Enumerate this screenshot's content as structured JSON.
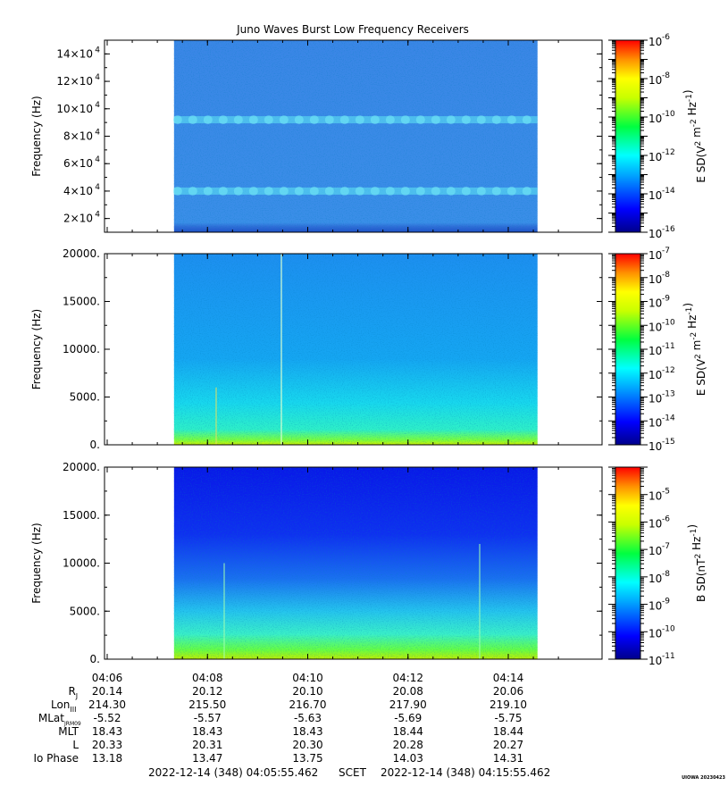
{
  "title": "Juno Waves Burst Low Frequency Receivers",
  "chart_data": [
    {
      "type": "heatmap",
      "name": "E-field high band",
      "ylabel": "Frequency (Hz)",
      "yticks": [
        {
          "value": 20000,
          "label": "2×10",
          "exp": "4"
        },
        {
          "value": 40000,
          "label": "4×10",
          "exp": "4"
        },
        {
          "value": 60000,
          "label": "6×10",
          "exp": "4"
        },
        {
          "value": 80000,
          "label": "8×10",
          "exp": "4"
        },
        {
          "value": 100000,
          "label": "10×10",
          "exp": "4"
        },
        {
          "value": 120000,
          "label": "12×10",
          "exp": "4"
        },
        {
          "value": 140000,
          "label": "14×10",
          "exp": "4"
        }
      ],
      "ylim": [
        10000,
        150000
      ],
      "colorbar": {
        "label": "E SD(V",
        "label_tail": " m",
        "label_end": " Hz",
        "exps": [
          "2",
          "-2",
          "-1"
        ],
        "log_range": [
          -16,
          -6
        ],
        "ticks": [
          {
            "exp": "-6"
          },
          {
            "exp": "-8"
          },
          {
            "exp": "-10"
          },
          {
            "exp": "-12"
          },
          {
            "exp": "-14"
          },
          {
            "exp": "-16"
          }
        ]
      },
      "features": [
        {
          "freq_hz": 40000,
          "desc": "band"
        },
        {
          "freq_hz": 92000,
          "desc": "band"
        }
      ]
    },
    {
      "type": "heatmap",
      "name": "E-field low band",
      "ylabel": "Frequency (Hz)",
      "yticks": [
        {
          "value": 0,
          "label": "0."
        },
        {
          "value": 5000,
          "label": "5000."
        },
        {
          "value": 10000,
          "label": "10000."
        },
        {
          "value": 15000,
          "label": "15000."
        },
        {
          "value": 20000,
          "label": "20000."
        }
      ],
      "ylim": [
        0,
        20000
      ],
      "colorbar": {
        "label": "E SD(V",
        "label_tail": " m",
        "label_end": " Hz",
        "exps": [
          "2",
          "-2",
          "-1"
        ],
        "log_range": [
          -15,
          -7
        ],
        "ticks": [
          {
            "exp": "-7"
          },
          {
            "exp": "-8"
          },
          {
            "exp": "-9"
          },
          {
            "exp": "-10"
          },
          {
            "exp": "-11"
          },
          {
            "exp": "-12"
          },
          {
            "exp": "-13"
          },
          {
            "exp": "-14"
          },
          {
            "exp": "-15"
          }
        ]
      }
    },
    {
      "type": "heatmap",
      "name": "B-field",
      "ylabel": "Frequency (Hz)",
      "yticks": [
        {
          "value": 0,
          "label": "0."
        },
        {
          "value": 5000,
          "label": "5000."
        },
        {
          "value": 10000,
          "label": "10000."
        },
        {
          "value": 15000,
          "label": "15000."
        },
        {
          "value": 20000,
          "label": "20000."
        }
      ],
      "ylim": [
        0,
        20000
      ],
      "colorbar": {
        "label": "B SD(nT",
        "label_tail": " Hz",
        "label_end": "",
        "exps": [
          "2",
          "-1",
          ""
        ],
        "log_range": [
          -11,
          -4
        ],
        "ticks": [
          {
            "exp": "-5"
          },
          {
            "exp": "-6"
          },
          {
            "exp": "-7"
          },
          {
            "exp": "-8"
          },
          {
            "exp": "-9"
          },
          {
            "exp": "-10"
          },
          {
            "exp": "-11"
          }
        ]
      }
    }
  ],
  "time_axis": {
    "tick_labels": [
      "04:06",
      "04:08",
      "04:10",
      "04:12",
      "04:14"
    ],
    "data_start": "04:07:20",
    "data_end": "04:14:35"
  },
  "ephemeris": {
    "rows": [
      {
        "label": "R",
        "sub": "J",
        "values": [
          "20.14",
          "20.12",
          "20.10",
          "20.08",
          "20.06"
        ]
      },
      {
        "label": "Lon",
        "sub": "III",
        "values": [
          "214.30",
          "215.50",
          "216.70",
          "217.90",
          "219.10"
        ]
      },
      {
        "label": "MLat",
        "sub": "JRM09",
        "values": [
          "-5.52",
          "-5.57",
          "-5.63",
          "-5.69",
          "-5.75"
        ]
      },
      {
        "label": "MLT",
        "sub": "",
        "values": [
          "18.43",
          "18.43",
          "18.43",
          "18.44",
          "18.44"
        ]
      },
      {
        "label": "L",
        "sub": "",
        "values": [
          "20.33",
          "20.31",
          "20.30",
          "20.28",
          "20.27"
        ]
      },
      {
        "label": "Io Phase",
        "sub": "",
        "values": [
          "13.18",
          "13.47",
          "13.75",
          "14.03",
          "14.31"
        ]
      }
    ]
  },
  "footer": {
    "start": "2022-12-14 (348) 04:05:55.462",
    "scet": "SCET",
    "end": "2022-12-14 (348) 04:15:55.462",
    "credit": "UIOWA 20230423"
  }
}
